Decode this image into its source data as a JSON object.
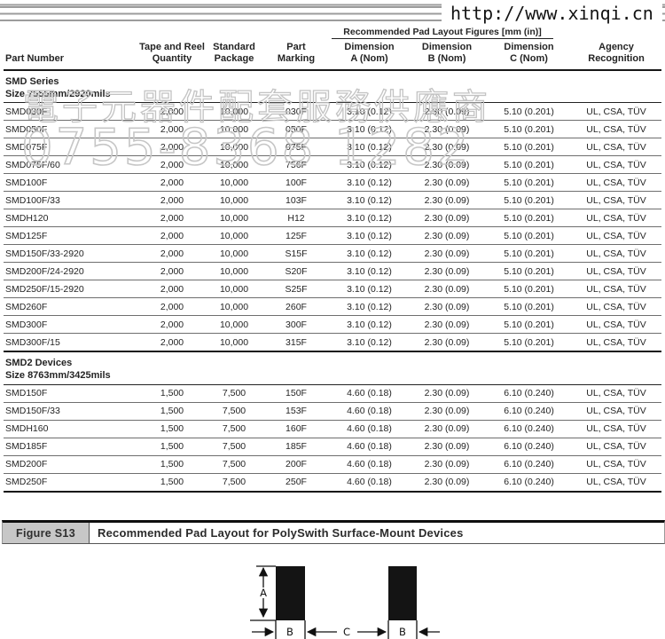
{
  "masthead": {
    "url": "http://www.xinqi.cn"
  },
  "watermark": {
    "chinese": "電子元器件配套服務供應商",
    "phone": "0755-8368 1282"
  },
  "table": {
    "group_header": "Recommended Pad Layout Figures [mm (in)]",
    "columns": [
      "Part Number",
      "Tape and Reel\nQuantity",
      "Standard\nPackage",
      "Part\nMarking",
      "Dimension\nA (Nom)",
      "Dimension\nB (Nom)",
      "Dimension\nC (Nom)",
      "Agency\nRecognition"
    ],
    "sections": [
      {
        "title": "SMD Series",
        "subtitle": "Size 7555mm/2920mils",
        "rows": [
          {
            "cells": [
              "SMD030F",
              "2,000",
              "10,000",
              "030F",
              "3.10 (0.12)",
              "2.30 (0.09)",
              "5.10 (0.201)",
              "UL, CSA, TÜV"
            ]
          },
          {
            "cells": [
              "SMD050F",
              "2,000",
              "10,000",
              "050F",
              "3.10 (0.12)",
              "2.30 (0.09)",
              "5.10 (0.201)",
              "UL, CSA, TÜV"
            ]
          },
          {
            "cells": [
              "SMD075F",
              "2,000",
              "10,000",
              "075F",
              "3.10 (0.12)",
              "2.30 (0.09)",
              "5.10 (0.201)",
              "UL, CSA, TÜV"
            ]
          },
          {
            "cells": [
              "SMD075F/60",
              "2,000",
              "10,000",
              "756F",
              "3.10 (0.12)",
              "2.30 (0.09)",
              "5.10 (0.201)",
              "UL, CSA, TÜV"
            ]
          },
          {
            "cells": [
              "SMD100F",
              "2,000",
              "10,000",
              "100F",
              "3.10 (0.12)",
              "2.30 (0.09)",
              "5.10 (0.201)",
              "UL, CSA, TÜV"
            ]
          },
          {
            "cells": [
              "SMD100F/33",
              "2,000",
              "10,000",
              "103F",
              "3.10 (0.12)",
              "2.30 (0.09)",
              "5.10 (0.201)",
              "UL, CSA, TÜV"
            ]
          },
          {
            "cells": [
              "SMDH120",
              "2,000",
              "10,000",
              "H12",
              "3.10 (0.12)",
              "2.30 (0.09)",
              "5.10 (0.201)",
              "UL, CSA, TÜV"
            ]
          },
          {
            "cells": [
              "SMD125F",
              "2,000",
              "10,000",
              "125F",
              "3.10 (0.12)",
              "2.30 (0.09)",
              "5.10 (0.201)",
              "UL, CSA, TÜV"
            ]
          },
          {
            "cells": [
              "SMD150F/33-2920",
              "2,000",
              "10,000",
              "S15F",
              "3.10 (0.12)",
              "2.30 (0.09)",
              "5.10 (0.201)",
              "UL, CSA, TÜV"
            ],
            "changed": true
          },
          {
            "cells": [
              "SMD200F/24-2920",
              "2,000",
              "10,000",
              "S20F",
              "3.10 (0.12)",
              "2.30 (0.09)",
              "5.10 (0.201)",
              "UL, CSA, TÜV"
            ],
            "changed": true
          },
          {
            "cells": [
              "SMD250F/15-2920",
              "2,000",
              "10,000",
              "S25F",
              "3.10 (0.12)",
              "2.30 (0.09)",
              "5.10 (0.201)",
              "UL, CSA, TÜV"
            ],
            "changed": true
          },
          {
            "cells": [
              "SMD260F",
              "2,000",
              "10,000",
              "260F",
              "3.10 (0.12)",
              "2.30 (0.09)",
              "5.10 (0.201)",
              "UL, CSA, TÜV"
            ]
          },
          {
            "cells": [
              "SMD300F",
              "2,000",
              "10,000",
              "300F",
              "3.10 (0.12)",
              "2.30 (0.09)",
              "5.10 (0.201)",
              "UL, CSA, TÜV"
            ]
          },
          {
            "cells": [
              "SMD300F/15",
              "2,000",
              "10,000",
              "315F",
              "3.10 (0.12)",
              "2.30 (0.09)",
              "5.10 (0.201)",
              "UL, CSA, TÜV"
            ]
          }
        ]
      },
      {
        "title": "SMD2 Devices",
        "subtitle": "Size 8763mm/3425mils",
        "rows": [
          {
            "cells": [
              "SMD150F",
              "1,500",
              "7,500",
              "150F",
              "4.60 (0.18)",
              "2.30 (0.09)",
              "6.10 (0.240)",
              "UL, CSA, TÜV"
            ]
          },
          {
            "cells": [
              "SMD150F/33",
              "1,500",
              "7,500",
              "153F",
              "4.60 (0.18)",
              "2.30 (0.09)",
              "6.10 (0.240)",
              "UL, CSA, TÜV"
            ]
          },
          {
            "cells": [
              "SMDH160",
              "1,500",
              "7,500",
              "160F",
              "4.60 (0.18)",
              "2.30 (0.09)",
              "6.10 (0.240)",
              "UL, CSA, TÜV"
            ]
          },
          {
            "cells": [
              "SMD185F",
              "1,500",
              "7,500",
              "185F",
              "4.60 (0.18)",
              "2.30 (0.09)",
              "6.10 (0.240)",
              "UL, CSA, TÜV"
            ]
          },
          {
            "cells": [
              "SMD200F",
              "1,500",
              "7,500",
              "200F",
              "4.60 (0.18)",
              "2.30 (0.09)",
              "6.10 (0.240)",
              "UL, CSA, TÜV"
            ]
          },
          {
            "cells": [
              "SMD250F",
              "1,500",
              "7,500",
              "250F",
              "4.60 (0.18)",
              "2.30 (0.09)",
              "6.10 (0.240)",
              "UL, CSA, TÜV"
            ]
          }
        ]
      }
    ]
  },
  "figure": {
    "label": "Figure S13",
    "title": "Recommended Pad Layout for PolySwith Surface-Mount Devices",
    "dims": {
      "a": "A",
      "b": "B",
      "c": "C"
    }
  }
}
